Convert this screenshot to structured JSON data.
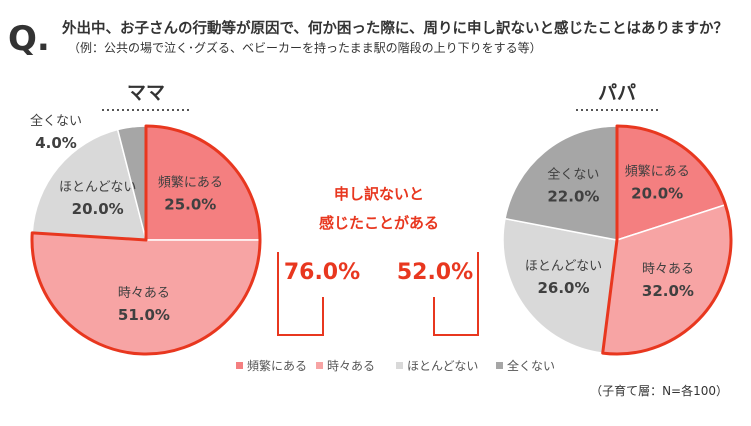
{
  "question": {
    "mark": "Q.",
    "title": "外出中、お子さんの行動等が原因で、何か困った際に、周りに申し訳ないと感じたことはありますか？",
    "subtitle": "（例：公共の場で泣く･グズる、ベビーカーを持ったまま駅の階段の上り下りをする等）"
  },
  "colors": {
    "accent": "#e8371f",
    "frequent": "#f47f80",
    "sometimes": "#f7a4a4",
    "rarely": "#d9d9d9",
    "never": "#a6a6a6",
    "text": "#404040"
  },
  "center": {
    "heading_line1": "申し訳ないと",
    "heading_line2": "感じたことがある",
    "mama_value": "76.0%",
    "papa_value": "52.0%"
  },
  "note": "（子育て層：N=各100）",
  "chart_data": [
    {
      "type": "pie",
      "title": "ママ",
      "categories": [
        "頻繁にある",
        "時々ある",
        "ほとんどない",
        "全くない"
      ],
      "values": [
        25.0,
        51.0,
        20.0,
        4.0
      ],
      "labels": [
        "25.0%",
        "51.0%",
        "20.0%",
        "4.0%"
      ],
      "legend": "bottom"
    },
    {
      "type": "pie",
      "title": "パパ",
      "categories": [
        "頻繁にある",
        "時々ある",
        "ほとんどない",
        "全くない"
      ],
      "values": [
        20.0,
        32.0,
        26.0,
        22.0
      ],
      "labels": [
        "20.0%",
        "32.0%",
        "26.0%",
        "22.0%"
      ],
      "legend": "bottom"
    }
  ]
}
